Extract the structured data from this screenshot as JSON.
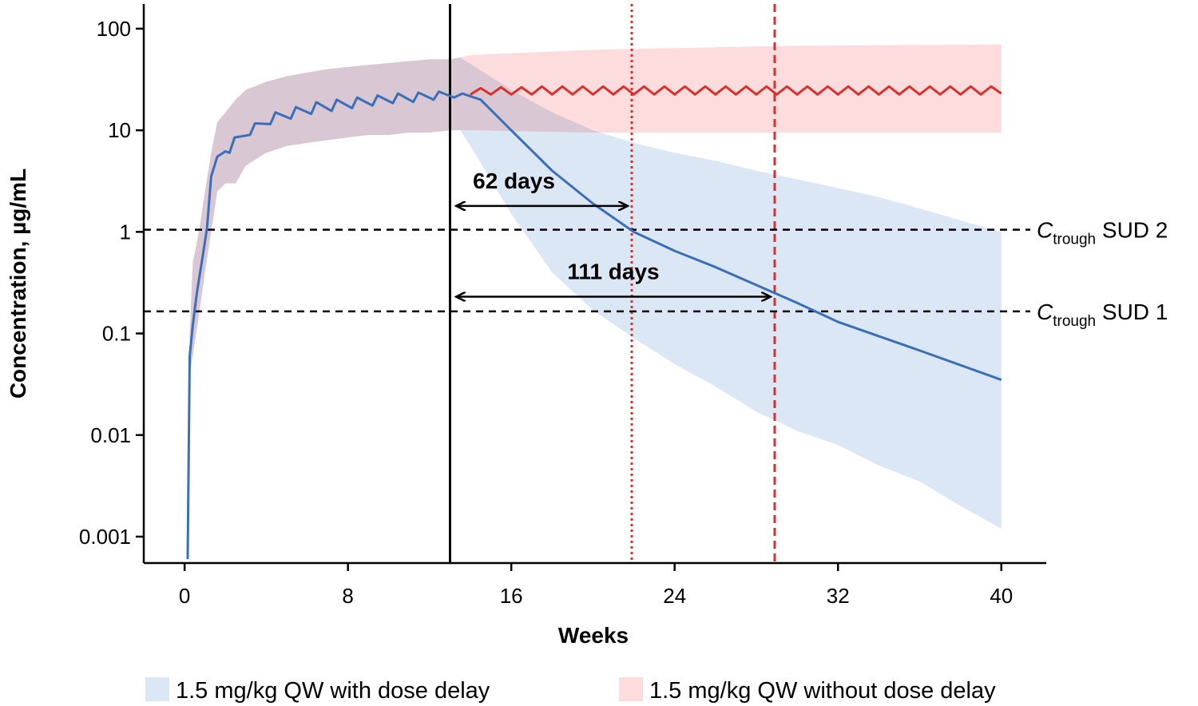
{
  "chart_data": {
    "type": "line",
    "log_y": true,
    "x_label": "Weeks",
    "y_label": "Concentration, µg/mL",
    "xlim": [
      -2,
      42.2
    ],
    "xticks": [
      0,
      8,
      16,
      24,
      32,
      40
    ],
    "ylim": [
      0.00055,
      175
    ],
    "yticks": [
      100,
      10,
      1,
      0.1,
      0.01,
      0.001
    ],
    "bands": [
      {
        "name": "1.5 mg/kg QW with dose delay",
        "color": "#dce7f5",
        "x": [
          0.25,
          0.4,
          0.7,
          1.0,
          1.3,
          1.6,
          2,
          2.5,
          3,
          4,
          5,
          6,
          7,
          8,
          9,
          10,
          11,
          12,
          13,
          13.5,
          14,
          16,
          18,
          20,
          22,
          24,
          26,
          28,
          30,
          32,
          34,
          36,
          38,
          40
        ],
        "lower": [
          0.04,
          0.06,
          0.15,
          0.4,
          1,
          2.5,
          3,
          3,
          4.5,
          6,
          7,
          7.5,
          8,
          8.5,
          9,
          9,
          9.5,
          9.5,
          10,
          10,
          7,
          1.5,
          0.4,
          0.17,
          0.09,
          0.05,
          0.03,
          0.017,
          0.011,
          0.008,
          0.005,
          0.0035,
          0.002,
          0.0012
        ],
        "upper": [
          0.1,
          0.5,
          1,
          2.5,
          6,
          12,
          15,
          20,
          25,
          30,
          34,
          37,
          40,
          42,
          44,
          46,
          48,
          50,
          50,
          52,
          45,
          25,
          15,
          10,
          7.5,
          6,
          5,
          4,
          3.3,
          2.7,
          2.2,
          1.7,
          1.3,
          1.0
        ]
      },
      {
        "name": "1.5 mg/kg QW without dose delay",
        "color": "#fcdcdc",
        "x": [
          0.25,
          0.4,
          0.7,
          1.0,
          1.3,
          1.6,
          2,
          2.5,
          3,
          4,
          5,
          6,
          7,
          8,
          9,
          10,
          11,
          12,
          13,
          13.5,
          14,
          20,
          30,
          40
        ],
        "lower": [
          0.04,
          0.06,
          0.15,
          0.4,
          1,
          2.5,
          3,
          3,
          4.5,
          6,
          7,
          7.5,
          8,
          8.5,
          9,
          9,
          9.5,
          9.5,
          10,
          10,
          10,
          9.5,
          9.5,
          9.5
        ],
        "upper": [
          0.1,
          0.5,
          1,
          2.5,
          6,
          12,
          15,
          20,
          25,
          30,
          34,
          37,
          40,
          42,
          44,
          46,
          48,
          50,
          50,
          52,
          55,
          62,
          68,
          70
        ]
      }
    ],
    "series": [
      {
        "color": "#3a6fb7",
        "x": [
          0.15,
          0.2,
          0.25,
          0.4,
          0.6,
          0.9,
          1.1,
          1.3,
          1.6,
          2.0,
          2.2,
          2.45,
          3.2,
          3.45,
          4.2,
          4.45,
          5.2,
          5.45,
          6.2,
          6.45,
          7.2,
          7.45,
          8.2,
          8.45,
          9.2,
          9.45,
          10.2,
          10.45,
          11.2,
          11.45,
          12.2,
          12.45,
          13.2,
          13.6,
          14.5,
          16,
          18,
          20,
          22,
          24,
          26,
          28,
          30,
          32,
          36,
          40
        ],
        "values": [
          0.0006,
          0.006,
          0.06,
          0.12,
          0.25,
          0.6,
          1.1,
          3.5,
          5.5,
          6.2,
          6,
          8.5,
          9,
          11.7,
          11.5,
          15,
          13,
          16.9,
          14.5,
          18.9,
          15.5,
          20,
          16.5,
          21,
          17.5,
          22,
          18.5,
          23,
          19,
          23.5,
          20,
          24,
          21,
          23,
          20,
          10,
          4,
          1.9,
          1.0,
          0.65,
          0.45,
          0.3,
          0.2,
          0.13,
          0.068,
          0.035
        ]
      },
      {
        "color": "#d9302c",
        "x": [
          14,
          14.5,
          15,
          15.5,
          16,
          16.5,
          17,
          17.5,
          18,
          18.5,
          19,
          19.5,
          20,
          20.5,
          21,
          21.5,
          22,
          22.5,
          23,
          23.5,
          24,
          24.5,
          25,
          25.5,
          26,
          26.5,
          27,
          27.5,
          28,
          28.5,
          29,
          29.5,
          30,
          30.5,
          31,
          31.5,
          32,
          32.5,
          33,
          33.5,
          34,
          34.5,
          35,
          35.5,
          36,
          36.5,
          37,
          37.5,
          38,
          38.5,
          39,
          39.5,
          40
        ],
        "values": [
          22.5,
          26,
          22.5,
          26.5,
          22.5,
          26.5,
          22.5,
          27,
          22.5,
          27,
          22.5,
          27,
          22.5,
          27,
          22.5,
          27,
          22.5,
          27,
          22.5,
          27,
          22.5,
          27,
          22.5,
          27,
          22.5,
          27,
          22.5,
          27,
          22.5,
          27,
          22.5,
          27,
          22.5,
          27,
          22.5,
          27,
          22.5,
          27,
          22.5,
          27,
          22.5,
          27,
          22.5,
          27,
          22.5,
          27,
          22.5,
          27,
          22.5,
          27,
          22.5,
          27,
          23
        ]
      }
    ],
    "hlines": [
      {
        "value": 1.05,
        "label_c": "C",
        "label_sub": "trough",
        "label_rest": " SUD 2"
      },
      {
        "value": 0.165,
        "label_c": "C",
        "label_sub": "trough",
        "label_rest": " SUD 1"
      }
    ],
    "vlines": [
      {
        "value": 13,
        "color": "#000000",
        "style": "solid"
      },
      {
        "value": 21.9,
        "color": "#d9302c",
        "style": "dotted"
      },
      {
        "value": 28.9,
        "color": "#d9302c",
        "style": "dashed"
      }
    ],
    "arrows": [
      {
        "text": "62 days",
        "x_start": 13.3,
        "x_end": 21.7,
        "y": 1.8
      },
      {
        "text": "111 days",
        "x_start": 13.3,
        "x_end": 28.7,
        "y": 0.23
      }
    ]
  }
}
